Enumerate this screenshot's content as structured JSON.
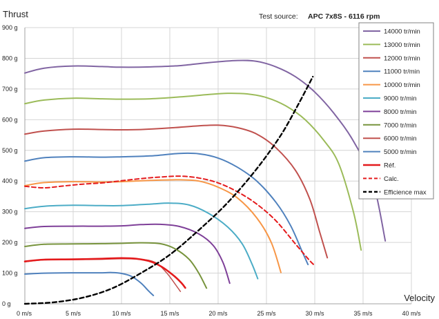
{
  "source_label": "Test source:",
  "source_value": "APC 7x8S - 6116 rpm",
  "chart_data": {
    "type": "line",
    "title": "",
    "xlabel": "Velocity",
    "ylabel": "Thrust",
    "xlim": [
      0,
      40
    ],
    "ylim": [
      0,
      900
    ],
    "x_ticks": [
      "0 m/s",
      "5 m/s",
      "10 m/s",
      "15 m/s",
      "20 m/s",
      "25 m/s",
      "30 m/s",
      "35 m/s",
      "40 m/s"
    ],
    "y_ticks": [
      "0 g",
      "100 g",
      "200 g",
      "300 g",
      "400 g",
      "500 g",
      "600 g",
      "700 g",
      "800 g",
      "900 g"
    ],
    "grid": true,
    "legend_position": "top-right",
    "series": [
      {
        "name": "14000 tr/min",
        "color": "#8064a2",
        "width": 2,
        "dash": "none",
        "points": [
          [
            0,
            752
          ],
          [
            2,
            768
          ],
          [
            5,
            775
          ],
          [
            8,
            773
          ],
          [
            10,
            771
          ],
          [
            13,
            772
          ],
          [
            16,
            776
          ],
          [
            19,
            786
          ],
          [
            22,
            793
          ],
          [
            24,
            790
          ],
          [
            26,
            772
          ],
          [
            28,
            740
          ],
          [
            30,
            690
          ],
          [
            32,
            620
          ],
          [
            34,
            530
          ],
          [
            36,
            400
          ],
          [
            37.3,
            205
          ]
        ]
      },
      {
        "name": "13000 tr/min",
        "color": "#9bbb59",
        "width": 2,
        "dash": "none",
        "points": [
          [
            0,
            652
          ],
          [
            2,
            664
          ],
          [
            5,
            670
          ],
          [
            8,
            668
          ],
          [
            10,
            667
          ],
          [
            13,
            668
          ],
          [
            16,
            674
          ],
          [
            19,
            682
          ],
          [
            21,
            686
          ],
          [
            23,
            684
          ],
          [
            25,
            672
          ],
          [
            27,
            645
          ],
          [
            29,
            600
          ],
          [
            31,
            530
          ],
          [
            32.5,
            455
          ],
          [
            34,
            300
          ],
          [
            34.8,
            175
          ]
        ]
      },
      {
        "name": "12000 tr/min",
        "color": "#c0504d",
        "width": 2,
        "dash": "none",
        "points": [
          [
            0,
            553
          ],
          [
            2,
            563
          ],
          [
            5,
            569
          ],
          [
            8,
            568
          ],
          [
            10,
            567
          ],
          [
            12,
            568
          ],
          [
            15,
            573
          ],
          [
            18,
            580
          ],
          [
            20,
            582
          ],
          [
            22,
            574
          ],
          [
            24,
            553
          ],
          [
            26,
            508
          ],
          [
            28,
            435
          ],
          [
            29.5,
            340
          ],
          [
            30.5,
            235
          ],
          [
            31.3,
            150
          ]
        ]
      },
      {
        "name": "11000 tr/min",
        "color": "#4f81bd",
        "width": 2,
        "dash": "none",
        "points": [
          [
            0,
            465
          ],
          [
            2,
            476
          ],
          [
            5,
            479
          ],
          [
            8,
            478
          ],
          [
            10,
            479
          ],
          [
            13,
            482
          ],
          [
            16,
            490
          ],
          [
            18,
            489
          ],
          [
            20,
            475
          ],
          [
            22,
            445
          ],
          [
            24,
            400
          ],
          [
            26,
            330
          ],
          [
            27.5,
            255
          ],
          [
            28.7,
            170
          ],
          [
            29.3,
            128
          ]
        ]
      },
      {
        "name": "10000 tr/min",
        "color": "#f79646",
        "width": 2,
        "dash": "none",
        "points": [
          [
            0,
            385
          ],
          [
            2,
            395
          ],
          [
            5,
            398
          ],
          [
            8,
            397
          ],
          [
            10,
            398
          ],
          [
            13,
            402
          ],
          [
            16,
            404
          ],
          [
            18,
            400
          ],
          [
            20,
            380
          ],
          [
            22,
            345
          ],
          [
            24,
            280
          ],
          [
            25.5,
            200
          ],
          [
            26.5,
            102
          ]
        ]
      },
      {
        "name": "9000 tr/min",
        "color": "#4bacc6",
        "width": 2,
        "dash": "none",
        "points": [
          [
            0,
            310
          ],
          [
            2,
            318
          ],
          [
            5,
            321
          ],
          [
            8,
            320
          ],
          [
            10,
            320
          ],
          [
            13,
            325
          ],
          [
            15,
            328
          ],
          [
            17,
            322
          ],
          [
            19,
            295
          ],
          [
            21,
            250
          ],
          [
            22.5,
            195
          ],
          [
            23.5,
            130
          ],
          [
            24.1,
            82
          ]
        ]
      },
      {
        "name": "8000 tr/min",
        "color": "#7e3f98",
        "width": 2,
        "dash": "none",
        "points": [
          [
            0,
            246
          ],
          [
            2,
            252
          ],
          [
            5,
            253
          ],
          [
            8,
            253
          ],
          [
            10,
            254
          ],
          [
            12,
            258
          ],
          [
            14,
            259
          ],
          [
            16,
            252
          ],
          [
            18,
            228
          ],
          [
            19.5,
            190
          ],
          [
            20.5,
            135
          ],
          [
            21.2,
            67
          ]
        ]
      },
      {
        "name": "7000 tr/min",
        "color": "#77933c",
        "width": 2,
        "dash": "none",
        "points": [
          [
            0,
            187
          ],
          [
            2,
            194
          ],
          [
            5,
            195
          ],
          [
            8,
            196
          ],
          [
            10,
            197
          ],
          [
            12,
            199
          ],
          [
            14,
            196
          ],
          [
            15.5,
            180
          ],
          [
            17,
            145
          ],
          [
            18,
            100
          ],
          [
            18.8,
            51
          ]
        ]
      },
      {
        "name": "6000 tr/min",
        "color": "#c0504d",
        "width": 1.5,
        "dash": "none",
        "points": [
          [
            0,
            137
          ],
          [
            2,
            143
          ],
          [
            5,
            144
          ],
          [
            8,
            145
          ],
          [
            10,
            147
          ],
          [
            12,
            145
          ],
          [
            13.5,
            135
          ],
          [
            14.7,
            100
          ],
          [
            15.6,
            62
          ],
          [
            16.1,
            40
          ]
        ]
      },
      {
        "name": "5000 tr/min",
        "color": "#4f81bd",
        "width": 2,
        "dash": "none",
        "points": [
          [
            0,
            97
          ],
          [
            2,
            100
          ],
          [
            5,
            101
          ],
          [
            8,
            101
          ],
          [
            9,
            102
          ],
          [
            10,
            99
          ],
          [
            11,
            90
          ],
          [
            12,
            68
          ],
          [
            12.8,
            42
          ],
          [
            13.3,
            27
          ]
        ]
      },
      {
        "name": "Réf.",
        "color": "#e41a1c",
        "width": 2.6,
        "dash": "none",
        "points": [
          [
            0,
            138
          ],
          [
            2,
            144
          ],
          [
            5,
            145
          ],
          [
            8,
            147
          ],
          [
            10,
            149
          ],
          [
            11.5,
            147
          ],
          [
            13,
            138
          ],
          [
            14.2,
            120
          ],
          [
            15.4,
            92
          ],
          [
            16.2,
            68
          ],
          [
            16.6,
            52
          ]
        ]
      },
      {
        "name": "Calc.",
        "color": "#e41a1c",
        "width": 2,
        "dash": "6,4",
        "points": [
          [
            0,
            383
          ],
          [
            2,
            378
          ],
          [
            4,
            384
          ],
          [
            6,
            390
          ],
          [
            8,
            394
          ],
          [
            10,
            401
          ],
          [
            12,
            408
          ],
          [
            14,
            413
          ],
          [
            16,
            416
          ],
          [
            18,
            410
          ],
          [
            20,
            394
          ],
          [
            22,
            365
          ],
          [
            24,
            325
          ],
          [
            26,
            270
          ],
          [
            28,
            195
          ],
          [
            29.5,
            140
          ],
          [
            30,
            125
          ]
        ]
      },
      {
        "name": "Efficience max",
        "color": "#000000",
        "width": 2.4,
        "dash": "6,4",
        "points": [
          [
            0,
            0
          ],
          [
            3,
            5
          ],
          [
            6,
            20
          ],
          [
            9,
            50
          ],
          [
            12,
            100
          ],
          [
            15,
            160
          ],
          [
            18,
            240
          ],
          [
            21,
            330
          ],
          [
            24,
            440
          ],
          [
            26.5,
            550
          ],
          [
            28.3,
            650
          ],
          [
            29.8,
            740
          ]
        ]
      }
    ]
  }
}
